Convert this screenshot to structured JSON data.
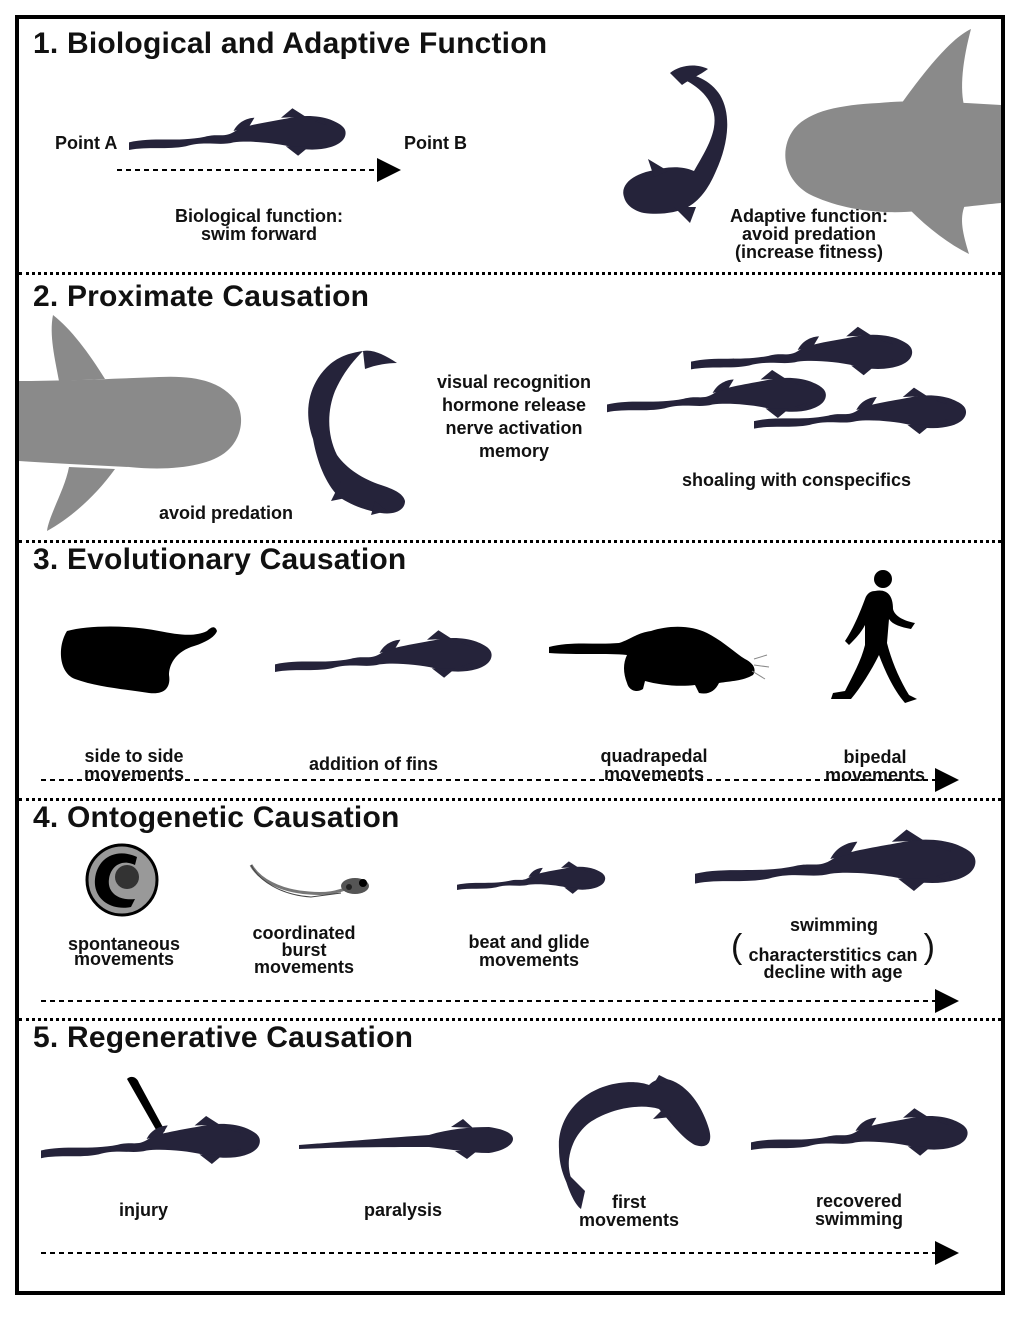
{
  "sections": [
    {
      "title": "1. Biological and Adaptive Function"
    },
    {
      "title": "2. Proximate Causation"
    },
    {
      "title": "3. Evolutionary Causation"
    },
    {
      "title": "4. Ontogenetic Causation"
    },
    {
      "title": "5. Regenerative Causation"
    }
  ],
  "s1": {
    "point_a": "Point A",
    "point_b": "Point B",
    "bio_line1": "Biological function:",
    "bio_line2": "swim forward",
    "adapt_line1": "Adaptive function:",
    "adapt_line2": "avoid predation",
    "adapt_line3": "(increase fitness)"
  },
  "s2": {
    "avoid": "avoid predation",
    "mech": [
      "visual recognition",
      "hormone release",
      "nerve activation",
      "memory"
    ],
    "shoaling": "shoaling with conspecifics"
  },
  "s3": {
    "side_1": "side to side",
    "side_2": "movements",
    "fins": "addition of fins",
    "quad_1": "quadrapedal",
    "quad_2": "movements",
    "biped_1": "bipedal",
    "biped_2": "movements"
  },
  "s4": {
    "spont_1": "spontaneous",
    "spont_2": "movements",
    "coord_1": "coordinated",
    "coord_2": "burst",
    "coord_3": "movements",
    "beat_1": "beat and glide",
    "beat_2": "movements",
    "swim": "swimming",
    "decl_1": "characterstitics can",
    "decl_2": "decline with age"
  },
  "s5": {
    "injury": "injury",
    "paralysis": "paralysis",
    "first_1": "first",
    "first_2": "movements",
    "rec_1": "recovered",
    "rec_2": "swimming"
  },
  "colors": {
    "fish": "#25233a",
    "shark": "#8a8a8a",
    "black": "#000000",
    "embryo_ring": "#999999"
  }
}
